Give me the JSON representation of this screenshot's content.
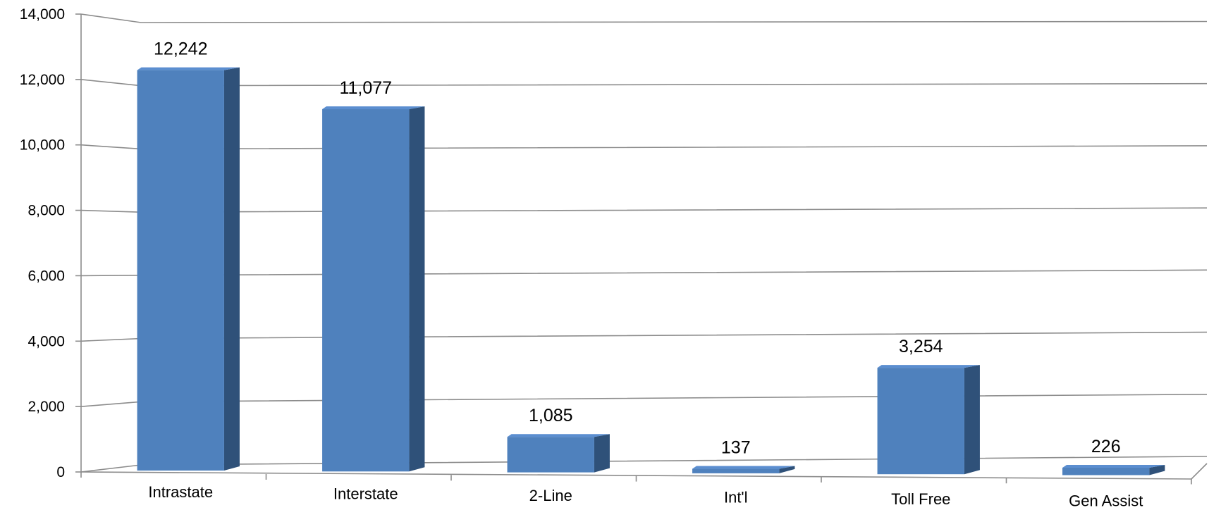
{
  "chart_data": {
    "type": "bar",
    "style": "3d-column",
    "categories": [
      "Intrastate",
      "Interstate",
      "2-Line",
      "Int'l",
      "Toll Free",
      "Gen Assist"
    ],
    "values": [
      12242,
      11077,
      1085,
      137,
      3254,
      226
    ],
    "data_labels": [
      "12,242",
      "11,077",
      "1,085",
      "137",
      "3,254",
      "226"
    ],
    "y_ticks": [
      0,
      2000,
      4000,
      6000,
      8000,
      10000,
      12000,
      14000
    ],
    "y_tick_labels": [
      "0",
      "2,000",
      "4,000",
      "6,000",
      "8,000",
      "10,000",
      "12,000",
      "14,000"
    ],
    "ylim": [
      0,
      14000
    ],
    "title": "",
    "xlabel": "",
    "ylabel": "",
    "grid": true,
    "legend": "none",
    "colors": {
      "bar_front": "#4F81BD",
      "bar_side": "#2F5179",
      "bar_top": "#5B8ED0",
      "gridline": "#8C8C8C",
      "axis": "#8C8C8C"
    }
  }
}
